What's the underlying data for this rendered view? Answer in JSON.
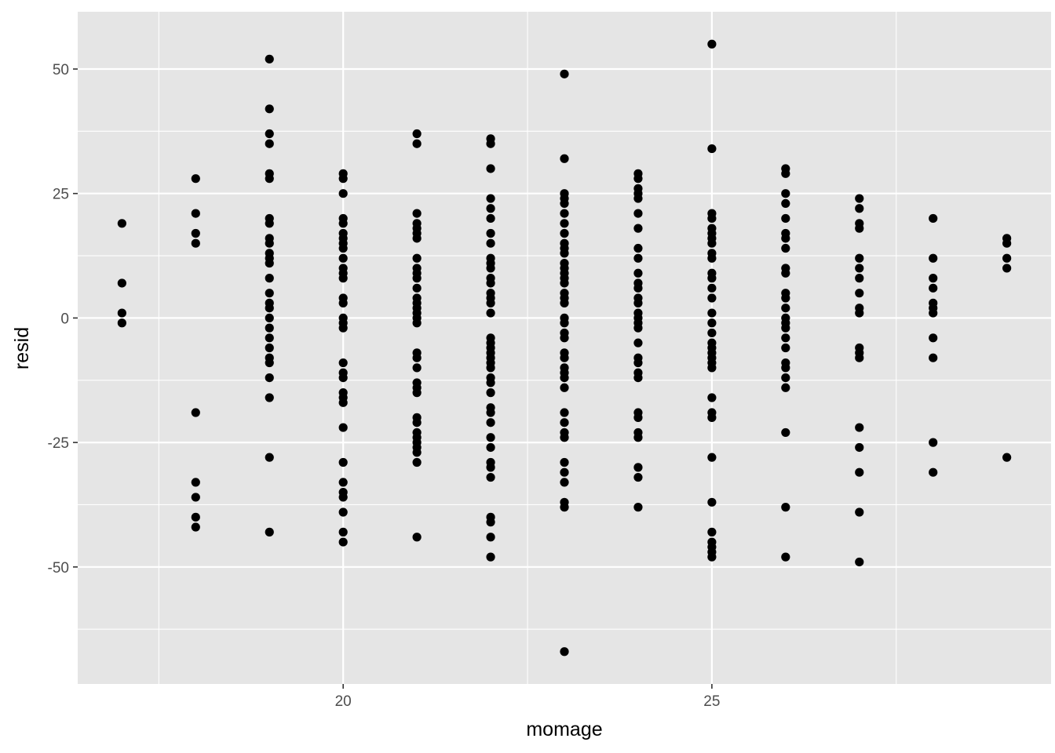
{
  "chart_data": {
    "type": "scatter",
    "title": "",
    "xlabel": "momage",
    "ylabel": "resid",
    "xlim": [
      16.4,
      29.6
    ],
    "ylim": [
      -73.5,
      61.5
    ],
    "x_major_ticks": [
      20,
      25
    ],
    "x_minor_ticks": [
      17.5,
      22.5,
      27.5
    ],
    "x_tick_labels": [
      "20",
      "25"
    ],
    "y_major_ticks": [
      -50,
      -25,
      0,
      25,
      50
    ],
    "y_minor_ticks": [
      -62.5,
      -37.5,
      -12.5,
      12.5,
      37.5
    ],
    "y_tick_labels": [
      "-50",
      "-25",
      "0",
      "25",
      "50"
    ],
    "grid": true,
    "background": "#e5e5e5",
    "grid_color": "#ffffff",
    "point_color": "#000000",
    "groups": [
      {
        "x": 17,
        "y": [
          19,
          7,
          1,
          -1
        ]
      },
      {
        "x": 18,
        "y": [
          28,
          21,
          17,
          15,
          -19,
          -33,
          -36,
          -40,
          -42
        ]
      },
      {
        "x": 19,
        "y": [
          52,
          42,
          37,
          35,
          29,
          28,
          20,
          19,
          16,
          15,
          13,
          12,
          11,
          8,
          5,
          3,
          2,
          0,
          -2,
          -4,
          -6,
          -8,
          -9,
          -12,
          -16,
          -28,
          -43
        ]
      },
      {
        "x": 20,
        "y": [
          29,
          28,
          25,
          20,
          19,
          17,
          16,
          15,
          14,
          12,
          10,
          9,
          8,
          4,
          3,
          0,
          -1,
          -2,
          -9,
          -11,
          -12,
          -15,
          -16,
          -17,
          -22,
          -29,
          -33,
          -35,
          -36,
          -39,
          -43,
          -45
        ]
      },
      {
        "x": 21,
        "y": [
          37,
          35,
          21,
          19,
          18,
          17,
          16,
          12,
          10,
          9,
          8,
          6,
          4,
          3,
          2,
          1,
          0,
          -1,
          -7,
          -8,
          -10,
          -13,
          -14,
          -15,
          -20,
          -21,
          -23,
          -24,
          -25,
          -26,
          -27,
          -29,
          -44
        ]
      },
      {
        "x": 22,
        "y": [
          36,
          35,
          30,
          24,
          22,
          20,
          17,
          15,
          12,
          11,
          10,
          8,
          7,
          5,
          4,
          3,
          1,
          -4,
          -5,
          -6,
          -7,
          -8,
          -9,
          -10,
          -12,
          -13,
          -15,
          -18,
          -19,
          -21,
          -24,
          -26,
          -29,
          -30,
          -32,
          -40,
          -41,
          -44,
          -48
        ]
      },
      {
        "x": 23,
        "y": [
          49,
          32,
          25,
          24,
          23,
          21,
          19,
          17,
          15,
          14,
          13,
          11,
          10,
          9,
          8,
          7,
          5,
          4,
          3,
          0,
          -1,
          -3,
          -4,
          -7,
          -8,
          -10,
          -11,
          -12,
          -14,
          -19,
          -21,
          -23,
          -24,
          -29,
          -31,
          -33,
          -37,
          -38,
          -67
        ]
      },
      {
        "x": 24,
        "y": [
          29,
          28,
          26,
          25,
          24,
          21,
          18,
          14,
          12,
          9,
          7,
          6,
          4,
          3,
          1,
          0,
          -1,
          -2,
          -5,
          -8,
          -9,
          -11,
          -12,
          -19,
          -20,
          -23,
          -24,
          -30,
          -32,
          -38
        ]
      },
      {
        "x": 25,
        "y": [
          55,
          34,
          21,
          20,
          18,
          17,
          16,
          15,
          13,
          12,
          9,
          8,
          6,
          4,
          1,
          -1,
          -3,
          -5,
          -6,
          -7,
          -8,
          -9,
          -10,
          -16,
          -19,
          -20,
          -28,
          -37,
          -43,
          -45,
          -46,
          -47,
          -48
        ]
      },
      {
        "x": 26,
        "y": [
          30,
          29,
          25,
          23,
          20,
          17,
          16,
          14,
          10,
          9,
          5,
          4,
          2,
          0,
          -1,
          -2,
          -4,
          -6,
          -9,
          -10,
          -12,
          -14,
          -23,
          -38,
          -48
        ]
      },
      {
        "x": 27,
        "y": [
          24,
          22,
          19,
          18,
          12,
          10,
          8,
          5,
          2,
          1,
          -6,
          -7,
          -8,
          -22,
          -26,
          -31,
          -39,
          -49
        ]
      },
      {
        "x": 28,
        "y": [
          20,
          12,
          8,
          6,
          3,
          2,
          1,
          -4,
          -8,
          -25,
          -31
        ]
      },
      {
        "x": 29,
        "y": [
          16,
          15,
          12,
          10,
          -28
        ]
      }
    ]
  }
}
